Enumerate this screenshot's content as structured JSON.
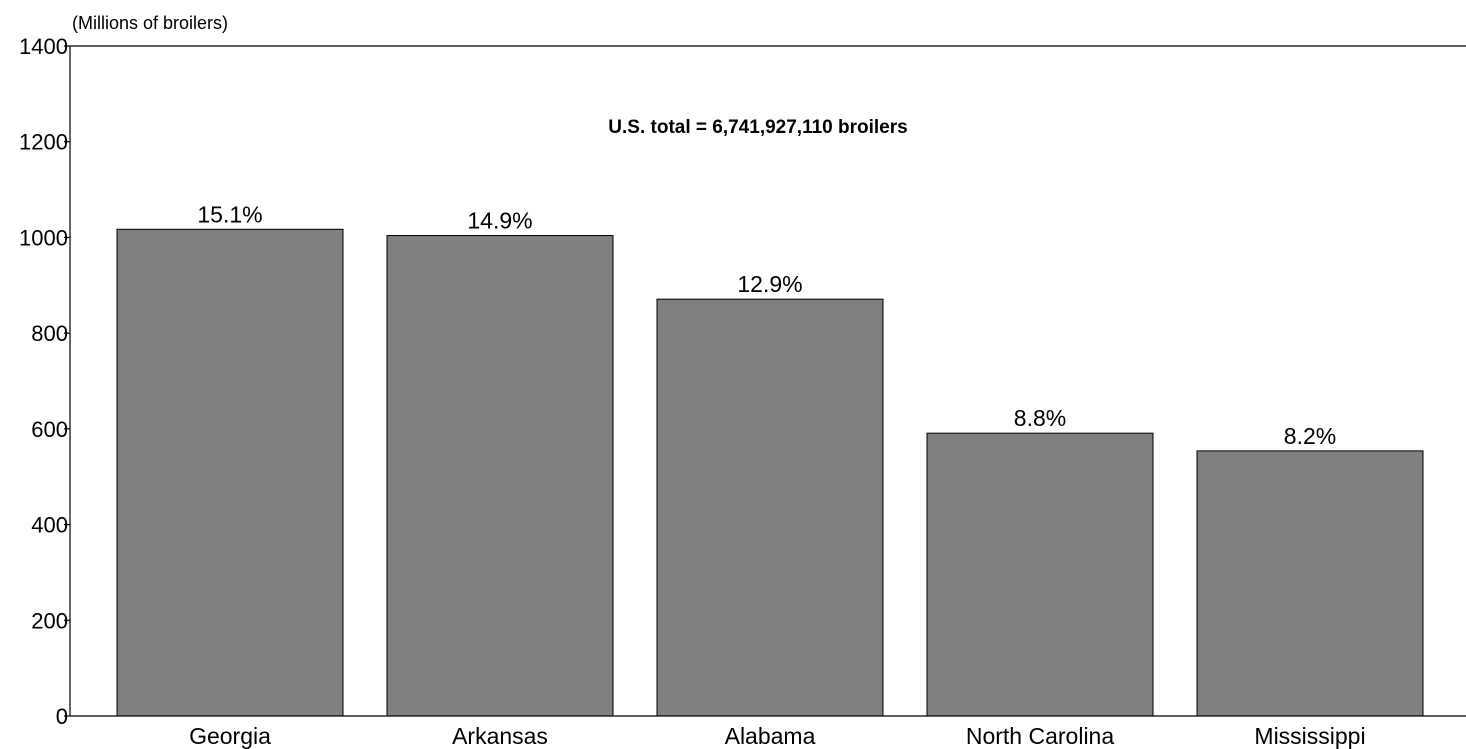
{
  "chart_data": {
    "type": "bar",
    "categories": [
      "Georgia",
      "Arkansas",
      "Alabama",
      "North Carolina",
      "Mississippi"
    ],
    "values": [
      1017,
      1004,
      871,
      591,
      554
    ],
    "data_labels": [
      "15.1%",
      "14.9%",
      "12.9%",
      "8.8%",
      "8.2%"
    ],
    "y_unit_label": "(Millions of broilers)",
    "annotation": "U.S. total = 6,741,927,110 broilers",
    "ylim": [
      0,
      1400
    ],
    "yticks": [
      0,
      200,
      400,
      600,
      800,
      1000,
      1200,
      1400
    ],
    "bar_color": "#808080",
    "grid": false,
    "legend": "none"
  }
}
